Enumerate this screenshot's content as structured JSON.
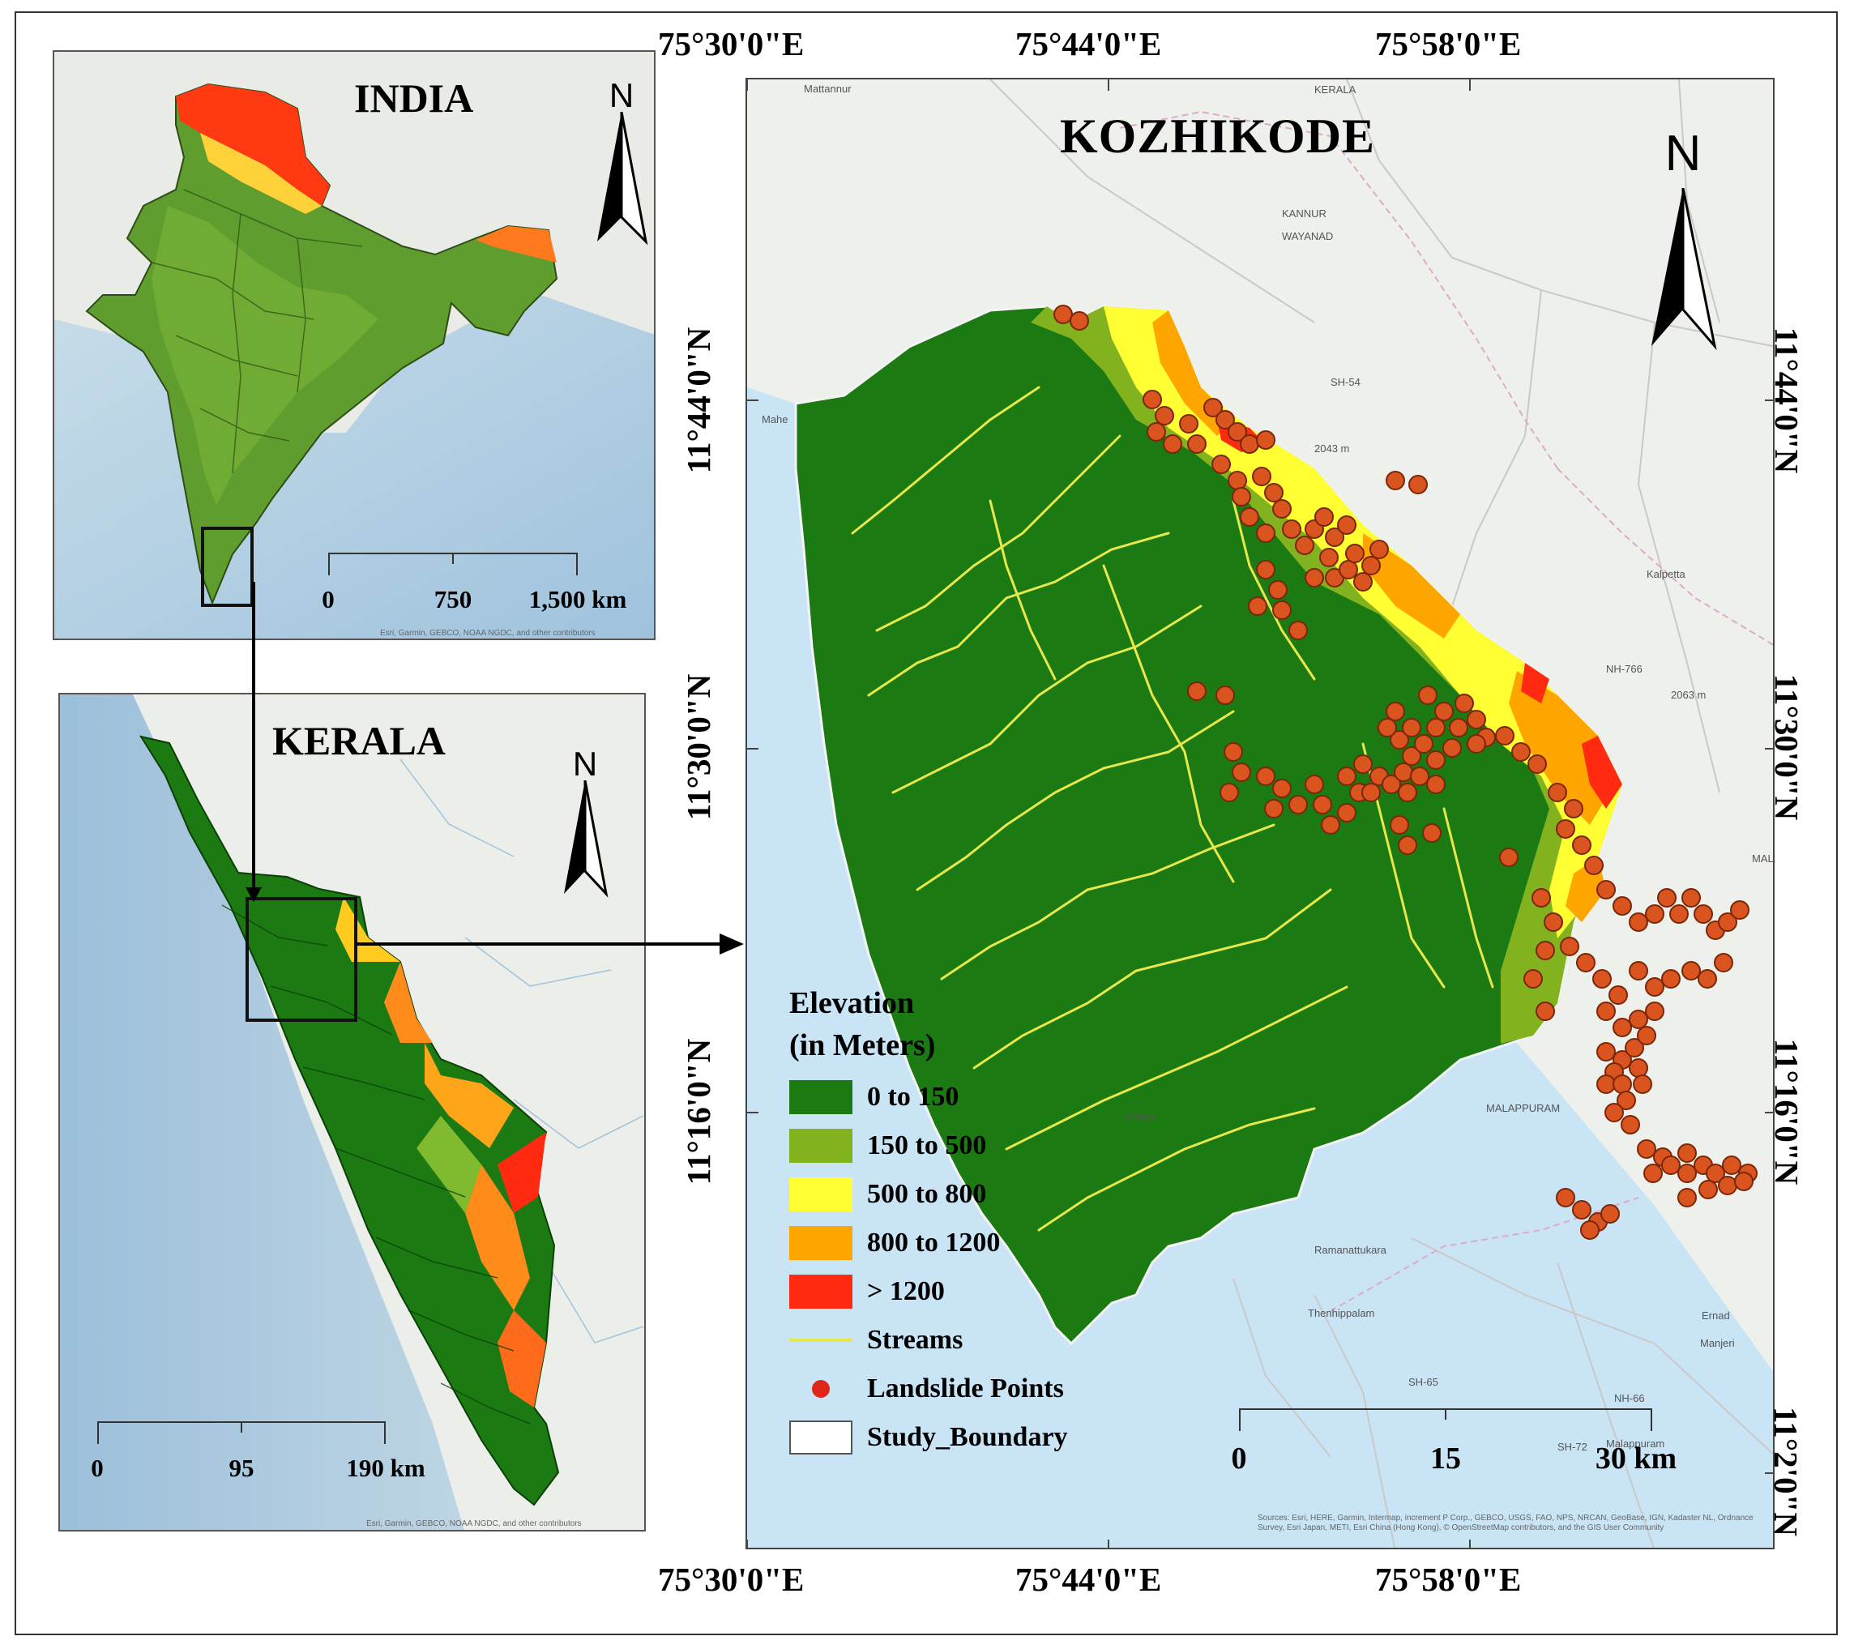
{
  "india_map": {
    "title": "INDIA",
    "north_label": "N",
    "scale_labels": [
      "0",
      "750",
      "1,500 km"
    ],
    "credits": "Esri, Garmin, GEBCO, NOAA NGDC, and other contributors"
  },
  "kerala_map": {
    "title": "KERALA",
    "north_label": "N",
    "scale_labels": [
      "0",
      "95",
      "190 km"
    ],
    "credits": "Esri, Garmin, GEBCO, NOAA NGDC, and other contributors"
  },
  "kozhikode_map": {
    "title": "KOZHIKODE",
    "north_label": "N",
    "scale_labels": [
      "0",
      "15",
      "30 km"
    ],
    "credits": "Sources: Esri, HERE, Garmin, Intermap, increment P Corp., GEBCO, USGS, FAO, NPS, NRCAN, GeoBase, IGN, Kadaster NL, Ordnance Survey, Esri Japan, METI, Esri China (Hong Kong), © OpenStreetMap contributors, and the GIS User Community",
    "top_longitudes": [
      "75°30'0\"E",
      "75°44'0\"E",
      "75°58'0\"E"
    ],
    "bottom_longitudes": [
      "75°30'0\"E",
      "75°44'0\"E",
      "75°58'0\"E"
    ],
    "left_latitudes": [
      "11°44'0\"N",
      "11°30'0\"N",
      "11°16'0\"N"
    ],
    "right_latitudes": [
      "11°44'0\"N",
      "11°30'0\"N",
      "11°16'0\"N",
      "11°2'0\"N"
    ],
    "place_names": [
      "Mattannur",
      "Mahe",
      "Kalpetta",
      "KANNUR",
      "WAYANAD",
      "KERALA",
      "Vellayil",
      "Ramanattukara",
      "Thenhippalam",
      "Malappuram",
      "Manjeri",
      "Ernad",
      "MALAPPURAM",
      "MALA",
      "SH-54",
      "NH-766",
      "2043 m",
      "2063 m",
      "SH-72",
      "SH-65",
      "NH-66"
    ]
  },
  "legend": {
    "title_line1": "Elevation",
    "title_line2": "(in Meters)",
    "items": [
      {
        "label": "0 to 150",
        "color": "#1b7a12"
      },
      {
        "label": "150 to 500",
        "color": "#82b21e"
      },
      {
        "label": "500 to 800",
        "color": "#ffff33"
      },
      {
        "label": "800 to 1200",
        "color": "#ffa500"
      },
      {
        "label": "> 1200",
        "color": "#ff2a10"
      }
    ],
    "streams_label": "Streams",
    "streams_color": "#e8e84a",
    "landslide_label": "Landslide Points",
    "landslide_color": "#d9541f",
    "boundary_label": "Study_Boundary"
  }
}
